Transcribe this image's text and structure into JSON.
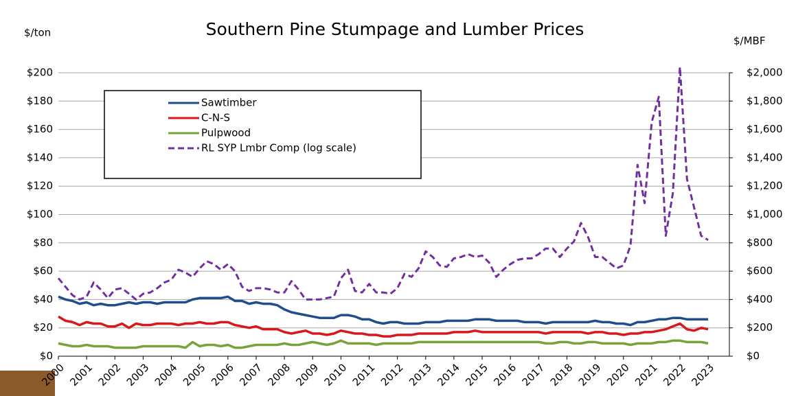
{
  "chart_data": {
    "type": "line",
    "title": "Southern Pine Stumpage and Lumber Prices",
    "ylabel": "$/ton",
    "y2label": "$/MBF",
    "x": [
      2000,
      2000.25,
      2000.5,
      2000.75,
      2001,
      2001.25,
      2001.5,
      2001.75,
      2002,
      2002.25,
      2002.5,
      2002.75,
      2003,
      2003.25,
      2003.5,
      2003.75,
      2004,
      2004.25,
      2004.5,
      2004.75,
      2005,
      2005.25,
      2005.5,
      2005.75,
      2006,
      2006.25,
      2006.5,
      2006.75,
      2007,
      2007.25,
      2007.5,
      2007.75,
      2008,
      2008.25,
      2008.5,
      2008.75,
      2009,
      2009.25,
      2009.5,
      2009.75,
      2010,
      2010.25,
      2010.5,
      2010.75,
      2011,
      2011.25,
      2011.5,
      2011.75,
      2012,
      2012.25,
      2012.5,
      2012.75,
      2013,
      2013.25,
      2013.5,
      2013.75,
      2014,
      2014.25,
      2014.5,
      2014.75,
      2015,
      2015.25,
      2015.5,
      2015.75,
      2016,
      2016.25,
      2016.5,
      2016.75,
      2017,
      2017.25,
      2017.5,
      2017.75,
      2018,
      2018.25,
      2018.5,
      2018.75,
      2019,
      2019.25,
      2019.5,
      2019.75,
      2020,
      2020.25,
      2020.5,
      2020.75,
      2021,
      2021.25,
      2021.5,
      2021.75,
      2022,
      2022.25,
      2022.5,
      2022.75,
      2023
    ],
    "series": [
      {
        "name": "Sawtimber",
        "color": "#1f4e8c",
        "values": [
          42,
          40,
          39,
          37,
          38,
          36,
          37,
          36,
          36,
          37,
          38,
          37,
          38,
          38,
          37,
          38,
          38,
          38,
          38,
          40,
          41,
          41,
          41,
          41,
          42,
          39,
          39,
          37,
          38,
          37,
          37,
          36,
          33,
          31,
          30,
          29,
          28,
          27,
          27,
          27,
          29,
          29,
          28,
          26,
          26,
          24,
          23,
          24,
          24,
          23,
          23,
          23,
          24,
          24,
          24,
          25,
          25,
          25,
          25,
          26,
          26,
          26,
          25,
          25,
          25,
          25,
          24,
          24,
          24,
          23,
          24,
          24,
          24,
          24,
          24,
          24,
          25,
          24,
          24,
          23,
          23,
          22,
          24,
          24,
          25,
          26,
          26,
          27,
          27,
          26,
          26,
          26,
          26
        ]
      },
      {
        "name": "C-N-S",
        "color": "#d7191c",
        "values": [
          28,
          25,
          24,
          22,
          24,
          23,
          23,
          21,
          21,
          23,
          20,
          23,
          22,
          22,
          23,
          23,
          23,
          22,
          23,
          23,
          24,
          23,
          23,
          24,
          24,
          22,
          21,
          20,
          21,
          19,
          19,
          19,
          17,
          16,
          17,
          18,
          16,
          16,
          15,
          16,
          18,
          17,
          16,
          16,
          15,
          15,
          14,
          14,
          15,
          15,
          15,
          16,
          16,
          16,
          16,
          16,
          17,
          17,
          17,
          18,
          17,
          17,
          17,
          17,
          17,
          17,
          17,
          17,
          17,
          16,
          17,
          17,
          17,
          17,
          17,
          16,
          17,
          17,
          16,
          16,
          15,
          16,
          16,
          17,
          17,
          18,
          19,
          21,
          23,
          19,
          18,
          20,
          19
        ]
      },
      {
        "name": "Pulpwood",
        "color": "#77a33a",
        "values": [
          9,
          8,
          7,
          7,
          8,
          7,
          7,
          7,
          6,
          6,
          6,
          6,
          7,
          7,
          7,
          7,
          7,
          7,
          6,
          10,
          7,
          8,
          8,
          7,
          8,
          6,
          6,
          7,
          8,
          8,
          8,
          8,
          9,
          8,
          8,
          9,
          10,
          9,
          8,
          9,
          11,
          9,
          9,
          9,
          9,
          8,
          9,
          9,
          9,
          9,
          9,
          10,
          10,
          10,
          10,
          10,
          10,
          10,
          10,
          10,
          10,
          10,
          10,
          10,
          10,
          10,
          10,
          10,
          10,
          9,
          9,
          10,
          10,
          9,
          9,
          10,
          10,
          9,
          9,
          9,
          9,
          8,
          9,
          9,
          9,
          10,
          10,
          11,
          11,
          10,
          10,
          10,
          9
        ]
      },
      {
        "name": "RL SYP Lmbr Comp (log scale)",
        "color": "#7030a0",
        "axis": "y2",
        "linestyle": "dashed",
        "values": [
          550,
          490,
          430,
          400,
          420,
          520,
          470,
          410,
          470,
          480,
          440,
          400,
          440,
          450,
          480,
          520,
          540,
          610,
          590,
          560,
          620,
          670,
          650,
          610,
          650,
          600,
          490,
          460,
          480,
          480,
          470,
          450,
          450,
          530,
          470,
          400,
          400,
          400,
          410,
          420,
          550,
          610,
          460,
          450,
          510,
          450,
          450,
          440,
          480,
          580,
          560,
          620,
          740,
          700,
          640,
          630,
          690,
          700,
          720,
          700,
          710,
          660,
          560,
          610,
          650,
          680,
          690,
          690,
          720,
          760,
          760,
          700,
          760,
          810,
          940,
          840,
          700,
          700,
          660,
          620,
          640,
          780,
          1350,
          1080,
          1650,
          1830,
          850,
          1150,
          2040,
          1250,
          1050,
          850,
          820
        ]
      }
    ],
    "xlim": [
      2000,
      2023.75
    ],
    "xticks": [
      2000,
      2001,
      2002,
      2003,
      2004,
      2005,
      2006,
      2007,
      2008,
      2009,
      2010,
      2011,
      2012,
      2013,
      2014,
      2015,
      2016,
      2017,
      2018,
      2019,
      2020,
      2021,
      2022,
      2023
    ],
    "ylim": [
      0,
      200
    ],
    "yticks": [
      {
        "value": 0,
        "label": "$0"
      },
      {
        "value": 20,
        "label": "$20"
      },
      {
        "value": 40,
        "label": "$40"
      },
      {
        "value": 60,
        "label": "$60"
      },
      {
        "value": 80,
        "label": "$80"
      },
      {
        "value": 100,
        "label": "$100"
      },
      {
        "value": 120,
        "label": "$120"
      },
      {
        "value": 140,
        "label": "$140"
      },
      {
        "value": 160,
        "label": "$160"
      },
      {
        "value": 180,
        "label": "$180"
      },
      {
        "value": 200,
        "label": "$200"
      }
    ],
    "y2lim": [
      0,
      2000
    ],
    "y2ticks": [
      {
        "value": 0,
        "label": "$0"
      },
      {
        "value": 200,
        "label": "$200"
      },
      {
        "value": 400,
        "label": "$400"
      },
      {
        "value": 600,
        "label": "$600"
      },
      {
        "value": 800,
        "label": "$800"
      },
      {
        "value": 1000,
        "label": "$1,000"
      },
      {
        "value": 1200,
        "label": "$1,200"
      },
      {
        "value": 1400,
        "label": "$1,400"
      },
      {
        "value": 1600,
        "label": "$1,600"
      },
      {
        "value": 1800,
        "label": "$1,800"
      },
      {
        "value": 2000,
        "label": "$2,000"
      }
    ],
    "grid": true,
    "legend": "upper left"
  }
}
